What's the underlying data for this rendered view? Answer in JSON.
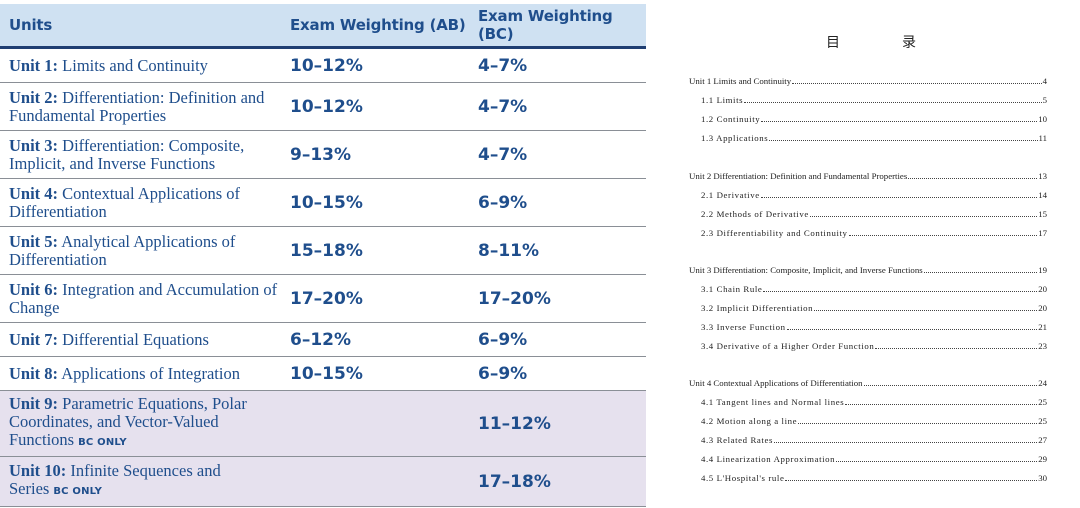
{
  "weights_table": {
    "headers": {
      "units": "Units",
      "ab": "Exam Weighting (AB)",
      "bc": "Exam Weighting (BC)"
    },
    "rows": [
      {
        "label": "Unit 1:",
        "title": "Limits and Continuity",
        "badge": "",
        "ab": "10–12%",
        "bc": "4–7%"
      },
      {
        "label": "Unit 2:",
        "title": "Differentiation: Definition and Fundamental Properties",
        "badge": "",
        "ab": "10–12%",
        "bc": "4–7%"
      },
      {
        "label": "Unit 3:",
        "title": "Differentiation: Composite, Implicit, and Inverse Functions",
        "badge": "",
        "ab": "9–13%",
        "bc": "4–7%"
      },
      {
        "label": "Unit 4:",
        "title": "Contextual Applications of Differentiation",
        "badge": "",
        "ab": "10–15%",
        "bc": "6–9%"
      },
      {
        "label": "Unit 5:",
        "title": "Analytical Applications of Differentiation",
        "badge": "",
        "ab": "15–18%",
        "bc": "8–11%"
      },
      {
        "label": "Unit 6:",
        "title": "Integration and Accumulation of Change",
        "badge": "",
        "ab": "17–20%",
        "bc": "17–20%"
      },
      {
        "label": "Unit 7:",
        "title": "Differential Equations",
        "badge": "",
        "ab": "6–12%",
        "bc": "6–9%"
      },
      {
        "label": "Unit 8:",
        "title": "Applications of Integration",
        "badge": "",
        "ab": "10–15%",
        "bc": "6–9%"
      },
      {
        "label": "Unit 9:",
        "title": "Parametric Equations, Polar Coordinates, and Vector-Valued Functions",
        "badge": "BC ONLY",
        "ab": "",
        "bc": "11–12%"
      },
      {
        "label": "Unit 10:",
        "title": "Infinite Sequences and Series",
        "badge": "BC ONLY",
        "ab": "",
        "bc": "17–18%"
      }
    ]
  },
  "toc": {
    "title_left": "目",
    "title_right": "录",
    "entries": [
      {
        "kind": "unit",
        "text": "Unit 1 Limits and Continuity",
        "page": "4"
      },
      {
        "kind": "sec",
        "text": "1.1 Limits",
        "page": "5"
      },
      {
        "kind": "sec",
        "text": "1.2 Continuity",
        "page": "10"
      },
      {
        "kind": "sec",
        "text": "1.3 Applications",
        "page": "11"
      },
      {
        "kind": "unit",
        "text": "Unit 2 Differentiation: Definition and Fundamental Properties",
        "page": "13"
      },
      {
        "kind": "sec",
        "text": "2.1 Derivative",
        "page": "14"
      },
      {
        "kind": "sec",
        "text": "2.2 Methods of Derivative",
        "page": "15"
      },
      {
        "kind": "sec",
        "text": "2.3 Differentiability and Continuity",
        "page": "17"
      },
      {
        "kind": "unit",
        "text": "Unit 3 Differentiation: Composite, Implicit, and Inverse Functions",
        "page": "19"
      },
      {
        "kind": "sec",
        "text": "3.1 Chain Rule",
        "page": "20"
      },
      {
        "kind": "sec",
        "text": "3.2 Implicit Differentiation",
        "page": "20"
      },
      {
        "kind": "sec",
        "text": "3.3 Inverse Function",
        "page": "21"
      },
      {
        "kind": "sec",
        "text": "3.4 Derivative of a Higher Order Function",
        "page": "23"
      },
      {
        "kind": "unit",
        "text": "Unit 4 Contextual Applications of Differentiation",
        "page": "24"
      },
      {
        "kind": "sec",
        "text": "4.1 Tangent lines and Normal lines",
        "page": "25"
      },
      {
        "kind": "sec",
        "text": "4.2 Motion along a line",
        "page": "25"
      },
      {
        "kind": "sec",
        "text": "4.3 Related Rates",
        "page": "27"
      },
      {
        "kind": "sec",
        "text": "4.4 Linearization Approximation",
        "page": "29"
      },
      {
        "kind": "sec",
        "text": "4.5 L'Hospital's rule",
        "page": "30"
      }
    ]
  },
  "colors": {
    "header_bg": "#cfe1f2",
    "text_blue": "#1f4e8c",
    "bc_only_bg": "#e6e1ee",
    "rule": "#1f3e72"
  }
}
